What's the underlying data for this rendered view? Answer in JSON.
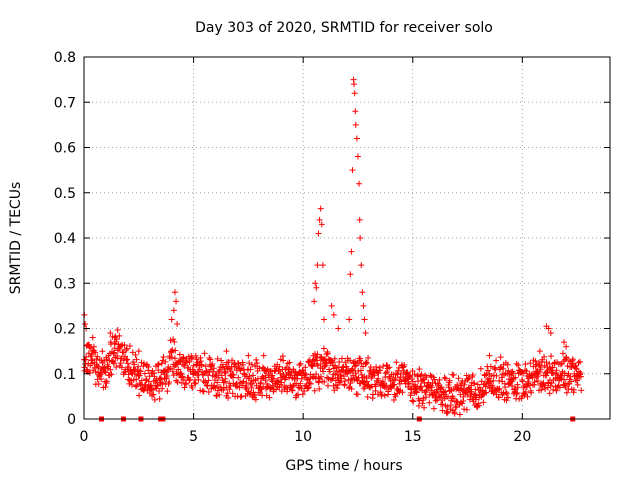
{
  "chart_data": {
    "type": "scatter",
    "title": "Day 303 of 2020, SRMTID for receiver solo",
    "xlabel": "GPS time / hours",
    "ylabel": "SRMTID / TECUs",
    "xlim": [
      0,
      24
    ],
    "ylim": [
      0,
      0.8
    ],
    "grid": true,
    "marker": "+",
    "color": "#ff0000",
    "x_ticks": [
      {
        "value": 0,
        "label": "0"
      },
      {
        "value": 5,
        "label": "5"
      },
      {
        "value": 10,
        "label": "10"
      },
      {
        "value": 15,
        "label": "15"
      },
      {
        "value": 20,
        "label": "20"
      }
    ],
    "y_ticks": [
      {
        "value": 0,
        "label": "0"
      },
      {
        "value": 0.1,
        "label": "0.1"
      },
      {
        "value": 0.2,
        "label": "0.2"
      },
      {
        "value": 0.3,
        "label": "0.3"
      },
      {
        "value": 0.4,
        "label": "0.4"
      },
      {
        "value": 0.5,
        "label": "0.5"
      },
      {
        "value": 0.6,
        "label": "0.6"
      },
      {
        "value": 0.7,
        "label": "0.7"
      },
      {
        "value": 0.8,
        "label": "0.8"
      }
    ],
    "trend": [
      [
        0.0,
        0.12
      ],
      [
        0.3,
        0.14
      ],
      [
        0.6,
        0.12
      ],
      [
        1.0,
        0.1
      ],
      [
        1.3,
        0.14
      ],
      [
        1.6,
        0.15
      ],
      [
        2.0,
        0.12
      ],
      [
        2.5,
        0.1
      ],
      [
        3.0,
        0.08
      ],
      [
        3.5,
        0.09
      ],
      [
        3.8,
        0.1
      ],
      [
        4.0,
        0.14
      ],
      [
        4.3,
        0.12
      ],
      [
        4.6,
        0.11
      ],
      [
        5.0,
        0.1
      ],
      [
        5.5,
        0.1
      ],
      [
        6.0,
        0.09
      ],
      [
        7.0,
        0.09
      ],
      [
        8.0,
        0.09
      ],
      [
        9.0,
        0.09
      ],
      [
        10.0,
        0.09
      ],
      [
        10.4,
        0.1
      ],
      [
        11.0,
        0.11
      ],
      [
        11.5,
        0.1
      ],
      [
        12.0,
        0.1
      ],
      [
        12.5,
        0.1
      ],
      [
        13.0,
        0.09
      ],
      [
        14.0,
        0.09
      ],
      [
        15.0,
        0.08
      ],
      [
        15.5,
        0.06
      ],
      [
        16.0,
        0.06
      ],
      [
        17.0,
        0.05
      ],
      [
        17.5,
        0.06
      ],
      [
        18.0,
        0.06
      ],
      [
        18.5,
        0.09
      ],
      [
        19.0,
        0.09
      ],
      [
        19.5,
        0.08
      ],
      [
        20.0,
        0.09
      ],
      [
        20.5,
        0.09
      ],
      [
        21.0,
        0.1
      ],
      [
        21.5,
        0.1
      ],
      [
        22.0,
        0.1
      ],
      [
        22.5,
        0.1
      ],
      [
        22.7,
        0.1
      ]
    ],
    "spikes": [
      {
        "x": 0.02,
        "y": 0.23
      },
      {
        "x": 0.05,
        "y": 0.21
      },
      {
        "x": 0.1,
        "y": 0.2
      },
      {
        "x": 0.4,
        "y": 0.18
      },
      {
        "x": 1.2,
        "y": 0.19
      },
      {
        "x": 1.4,
        "y": 0.18
      },
      {
        "x": 2.5,
        "y": 0.15
      },
      {
        "x": 4.0,
        "y": 0.22
      },
      {
        "x": 4.1,
        "y": 0.24
      },
      {
        "x": 4.15,
        "y": 0.28
      },
      {
        "x": 4.2,
        "y": 0.26
      },
      {
        "x": 4.25,
        "y": 0.21
      },
      {
        "x": 6.5,
        "y": 0.15
      },
      {
        "x": 7.5,
        "y": 0.14
      },
      {
        "x": 8.2,
        "y": 0.14
      },
      {
        "x": 10.5,
        "y": 0.26
      },
      {
        "x": 10.55,
        "y": 0.3
      },
      {
        "x": 10.6,
        "y": 0.29
      },
      {
        "x": 10.65,
        "y": 0.34
      },
      {
        "x": 10.7,
        "y": 0.41
      },
      {
        "x": 10.75,
        "y": 0.44
      },
      {
        "x": 10.8,
        "y": 0.465
      },
      {
        "x": 10.85,
        "y": 0.43
      },
      {
        "x": 10.9,
        "y": 0.34
      },
      {
        "x": 10.95,
        "y": 0.22
      },
      {
        "x": 11.3,
        "y": 0.25
      },
      {
        "x": 11.4,
        "y": 0.23
      },
      {
        "x": 11.6,
        "y": 0.2
      },
      {
        "x": 12.1,
        "y": 0.22
      },
      {
        "x": 12.15,
        "y": 0.32
      },
      {
        "x": 12.2,
        "y": 0.37
      },
      {
        "x": 12.25,
        "y": 0.55
      },
      {
        "x": 12.3,
        "y": 0.75
      },
      {
        "x": 12.32,
        "y": 0.74
      },
      {
        "x": 12.35,
        "y": 0.72
      },
      {
        "x": 12.38,
        "y": 0.68
      },
      {
        "x": 12.4,
        "y": 0.65
      },
      {
        "x": 12.45,
        "y": 0.62
      },
      {
        "x": 12.5,
        "y": 0.58
      },
      {
        "x": 12.55,
        "y": 0.52
      },
      {
        "x": 12.58,
        "y": 0.44
      },
      {
        "x": 12.6,
        "y": 0.4
      },
      {
        "x": 12.65,
        "y": 0.34
      },
      {
        "x": 12.7,
        "y": 0.28
      },
      {
        "x": 12.75,
        "y": 0.25
      },
      {
        "x": 12.8,
        "y": 0.22
      },
      {
        "x": 12.85,
        "y": 0.19
      },
      {
        "x": 18.5,
        "y": 0.14
      },
      {
        "x": 20.8,
        "y": 0.15
      },
      {
        "x": 21.1,
        "y": 0.205
      },
      {
        "x": 21.2,
        "y": 0.2
      },
      {
        "x": 21.3,
        "y": 0.19
      },
      {
        "x": 21.9,
        "y": 0.17
      },
      {
        "x": 22.0,
        "y": 0.16
      }
    ],
    "zero_markers": [
      0.8,
      1.8,
      2.6,
      3.5,
      3.6,
      15.3,
      22.3
    ]
  }
}
